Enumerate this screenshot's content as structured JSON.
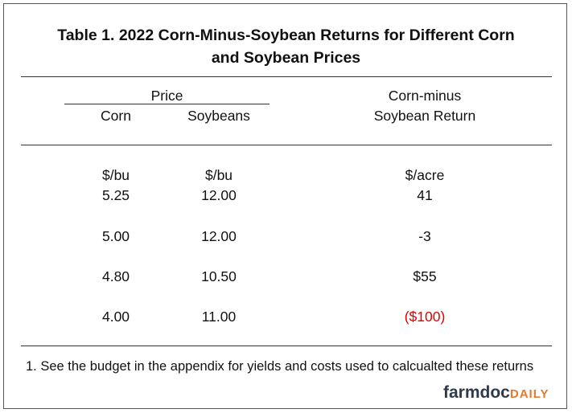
{
  "title": {
    "line1": "Table 1.  2022 Corn-Minus-Soybean Returns for Different Corn",
    "line2": "and Soybean Prices"
  },
  "header": {
    "price_group": "Price",
    "col_corn": "Corn",
    "col_soybeans": "Soybeans",
    "col_return_line1": "Corn-minus",
    "col_return_line2": "Soybean Return"
  },
  "units": {
    "corn": "$/bu",
    "soybeans": "$/bu",
    "return": "$/acre"
  },
  "rows": [
    {
      "corn": "5.25",
      "soybeans": "12.00",
      "return": "41"
    },
    {
      "corn": "5.00",
      "soybeans": "12.00",
      "return": "-3"
    },
    {
      "corn": "4.80",
      "soybeans": "10.50",
      "return": "$55"
    },
    {
      "corn": "4.00",
      "soybeans": "11.00",
      "return": "($100)"
    }
  ],
  "colors": {
    "negative": "#e00000",
    "logo_primary": "#2f3b4c",
    "logo_accent": "#e8782a"
  },
  "footnote": "1. See the budget in the appendix for yields and costs used to calcualted these returns",
  "logo": {
    "part1": "farmdoc",
    "part2": "DAILY"
  }
}
